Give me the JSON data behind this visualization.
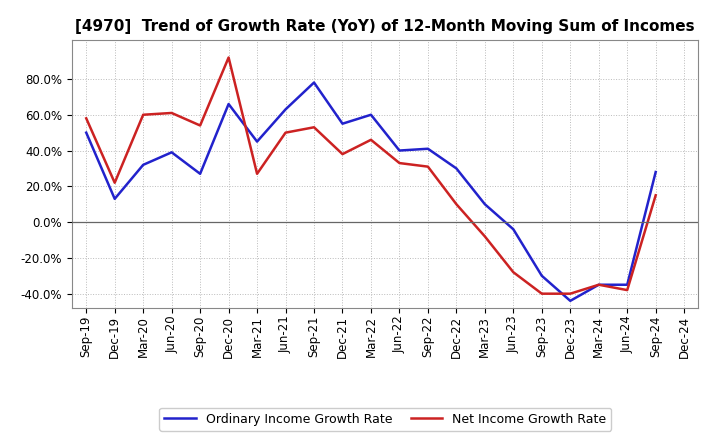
{
  "title": "[4970]  Trend of Growth Rate (YoY) of 12-Month Moving Sum of Incomes",
  "x_labels": [
    "Sep-19",
    "Dec-19",
    "Mar-20",
    "Jun-20",
    "Sep-20",
    "Dec-20",
    "Mar-21",
    "Jun-21",
    "Sep-21",
    "Dec-21",
    "Mar-22",
    "Jun-22",
    "Sep-22",
    "Dec-22",
    "Mar-23",
    "Jun-23",
    "Sep-23",
    "Dec-23",
    "Mar-24",
    "Jun-24",
    "Sep-24",
    "Dec-24"
  ],
  "ordinary_income": [
    0.5,
    0.13,
    0.32,
    0.39,
    0.27,
    0.66,
    0.45,
    0.63,
    0.78,
    0.55,
    0.6,
    0.4,
    0.41,
    0.3,
    0.1,
    -0.04,
    -0.3,
    -0.44,
    -0.35,
    -0.35,
    0.28,
    null
  ],
  "net_income": [
    0.58,
    0.22,
    0.6,
    0.61,
    0.54,
    0.92,
    0.27,
    0.5,
    0.53,
    0.38,
    0.46,
    0.33,
    0.31,
    0.1,
    -0.08,
    -0.28,
    -0.4,
    -0.4,
    -0.35,
    -0.38,
    0.15,
    null
  ],
  "ylim": [
    -0.48,
    1.02
  ],
  "yticks": [
    -0.4,
    -0.2,
    0.0,
    0.2,
    0.4,
    0.6,
    0.8
  ],
  "line_color_ordinary": "#2222cc",
  "line_color_net": "#cc2222",
  "legend_ordinary": "Ordinary Income Growth Rate",
  "legend_net": "Net Income Growth Rate",
  "background_color": "#ffffff",
  "grid_color": "#bbbbbb",
  "title_fontsize": 11,
  "tick_fontsize": 8.5,
  "legend_fontsize": 9
}
